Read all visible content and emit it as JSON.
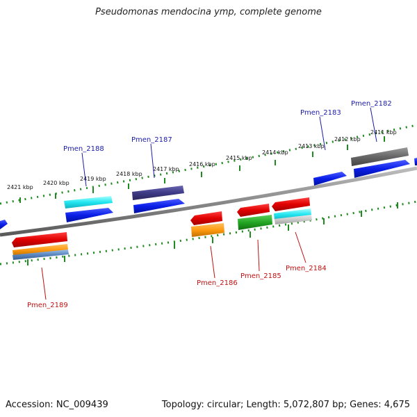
{
  "title": "Pseudomonas mendocina ymp, complete genome",
  "footer": {
    "accession": "Accession: NC_009439",
    "summary": "Topology: circular; Length: 5,072,807 bp; Genes: 4,675"
  },
  "ticks": [
    "2421 kbp",
    "2420 kbp",
    "2419 kbp",
    "2418 kbp",
    "2417 kbp",
    "2416 kbp",
    "2415 kbp",
    "2414 kbp",
    "2413 kbp",
    "2412 kbp",
    "2411 kbp"
  ],
  "genes_top": [
    "Pmen_2188",
    "Pmen_2187",
    "Pmen_2183",
    "Pmen_2182"
  ],
  "genes_bottom": [
    "Pmen_2189",
    "Pmen_2186",
    "Pmen_2185",
    "Pmen_2184"
  ],
  "colors": {
    "top_label": "#1a1aa8",
    "bottom_label": "#c01010",
    "dots": "#1f8a1f",
    "backbone": "#888888"
  }
}
